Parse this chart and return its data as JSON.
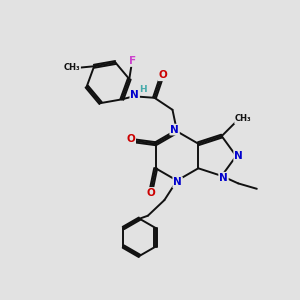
{
  "bg_color": "#e2e2e2",
  "bond_color": "#111111",
  "bond_width": 1.4,
  "N_color": "#0000cc",
  "O_color": "#cc0000",
  "F_color": "#cc44cc",
  "H_color": "#44aaaa",
  "font_size": 7.5,
  "figsize": [
    3.0,
    3.0
  ],
  "dpi": 100,
  "xlim": [
    0,
    10
  ],
  "ylim": [
    0,
    10
  ]
}
